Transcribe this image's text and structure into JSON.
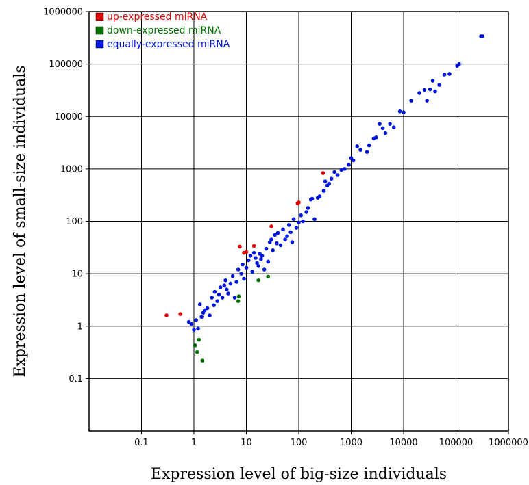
{
  "chart_data": {
    "type": "scatter",
    "title": "",
    "xlabel": "Expression level of big-size individuals",
    "ylabel": "Expression level of small-size individuals",
    "x_scale": "log",
    "y_scale": "log",
    "xlim": [
      0.01,
      1000000
    ],
    "ylim": [
      0.01,
      1000000
    ],
    "x_ticks": [
      0.1,
      1,
      10,
      100,
      1000,
      10000,
      100000,
      1000000
    ],
    "x_tick_labels": [
      "0.1",
      "1",
      "10",
      "100",
      "1000",
      "10000",
      "100000",
      "1000000"
    ],
    "y_ticks": [
      0.1,
      1,
      10,
      100,
      1000,
      10000,
      100000,
      1000000
    ],
    "y_tick_labels": [
      "0.1",
      "1",
      "10",
      "100",
      "1000",
      "10000",
      "100000",
      "1000000"
    ],
    "grid": true,
    "legend_position": "top-left",
    "series": [
      {
        "name": "up-expressed miRNA",
        "color": "#e00000",
        "points": [
          [
            0.3,
            1.6
          ],
          [
            0.55,
            1.7
          ],
          [
            7.5,
            33
          ],
          [
            9,
            25
          ],
          [
            10,
            26
          ],
          [
            14,
            34
          ],
          [
            30,
            80
          ],
          [
            95,
            220
          ],
          [
            100,
            230
          ],
          [
            290,
            830
          ]
        ]
      },
      {
        "name": "down-expressed miRNA",
        "color": "#007000",
        "points": [
          [
            1.05,
            0.43
          ],
          [
            1.15,
            0.32
          ],
          [
            1.25,
            0.55
          ],
          [
            1.45,
            0.22
          ],
          [
            7,
            3.0
          ],
          [
            7.2,
            3.7
          ],
          [
            17,
            7.5
          ],
          [
            26,
            8.8
          ]
        ]
      },
      {
        "name": "equally-expressed miRNA",
        "color": "#0018dd",
        "points": [
          [
            0.8,
            1.2
          ],
          [
            0.9,
            1.1
          ],
          [
            1.0,
            0.85
          ],
          [
            1.1,
            1.3
          ],
          [
            1.2,
            0.9
          ],
          [
            1.3,
            2.6
          ],
          [
            1.4,
            1.5
          ],
          [
            1.5,
            1.8
          ],
          [
            1.6,
            2.0
          ],
          [
            1.8,
            2.2
          ],
          [
            2.0,
            1.6
          ],
          [
            2.2,
            3.5
          ],
          [
            2.4,
            2.5
          ],
          [
            2.5,
            4.5
          ],
          [
            2.8,
            3.0
          ],
          [
            3.0,
            4.0
          ],
          [
            3.2,
            5.5
          ],
          [
            3.5,
            3.5
          ],
          [
            3.8,
            6.0
          ],
          [
            4.0,
            7.5
          ],
          [
            4.2,
            5.0
          ],
          [
            4.5,
            4.2
          ],
          [
            5.0,
            6.5
          ],
          [
            5.5,
            9.0
          ],
          [
            6.0,
            3.5
          ],
          [
            6.5,
            7.0
          ],
          [
            7.0,
            12
          ],
          [
            8.0,
            10
          ],
          [
            8.5,
            15
          ],
          [
            9.0,
            8.0
          ],
          [
            10,
            13
          ],
          [
            11,
            18
          ],
          [
            12,
            22
          ],
          [
            13,
            11
          ],
          [
            14,
            25
          ],
          [
            15,
            20
          ],
          [
            16,
            16
          ],
          [
            17,
            14
          ],
          [
            18,
            24
          ],
          [
            19,
            19
          ],
          [
            20,
            22
          ],
          [
            22,
            12
          ],
          [
            24,
            30
          ],
          [
            26,
            17
          ],
          [
            28,
            40
          ],
          [
            30,
            45
          ],
          [
            32,
            28
          ],
          [
            35,
            55
          ],
          [
            38,
            38
          ],
          [
            40,
            60
          ],
          [
            45,
            35
          ],
          [
            50,
            70
          ],
          [
            55,
            45
          ],
          [
            60,
            52
          ],
          [
            65,
            85
          ],
          [
            70,
            62
          ],
          [
            75,
            40
          ],
          [
            80,
            110
          ],
          [
            90,
            75
          ],
          [
            100,
            95
          ],
          [
            110,
            130
          ],
          [
            120,
            100
          ],
          [
            140,
            150
          ],
          [
            150,
            180
          ],
          [
            170,
            260
          ],
          [
            180,
            270
          ],
          [
            200,
            110
          ],
          [
            230,
            280
          ],
          [
            250,
            300
          ],
          [
            300,
            380
          ],
          [
            320,
            580
          ],
          [
            350,
            480
          ],
          [
            380,
            520
          ],
          [
            420,
            650
          ],
          [
            480,
            870
          ],
          [
            550,
            760
          ],
          [
            650,
            950
          ],
          [
            750,
            1000
          ],
          [
            900,
            1200
          ],
          [
            1000,
            1600
          ],
          [
            1100,
            1450
          ],
          [
            1300,
            2700
          ],
          [
            1500,
            2300
          ],
          [
            2000,
            2100
          ],
          [
            2200,
            2800
          ],
          [
            2700,
            3800
          ],
          [
            3000,
            4000
          ],
          [
            3500,
            7200
          ],
          [
            4000,
            6000
          ],
          [
            4500,
            4800
          ],
          [
            5500,
            7200
          ],
          [
            6500,
            6200
          ],
          [
            8500,
            12500
          ],
          [
            10000,
            12000
          ],
          [
            14000,
            20000
          ],
          [
            20000,
            28000
          ],
          [
            25000,
            32000
          ],
          [
            28000,
            20000
          ],
          [
            32000,
            33000
          ],
          [
            36000,
            48000
          ],
          [
            40000,
            30000
          ],
          [
            48000,
            40000
          ],
          [
            60000,
            63000
          ],
          [
            75000,
            65000
          ],
          [
            105000,
            92000
          ],
          [
            115000,
            100000
          ],
          [
            300000,
            340000
          ],
          [
            320000,
            340000
          ]
        ]
      }
    ]
  }
}
